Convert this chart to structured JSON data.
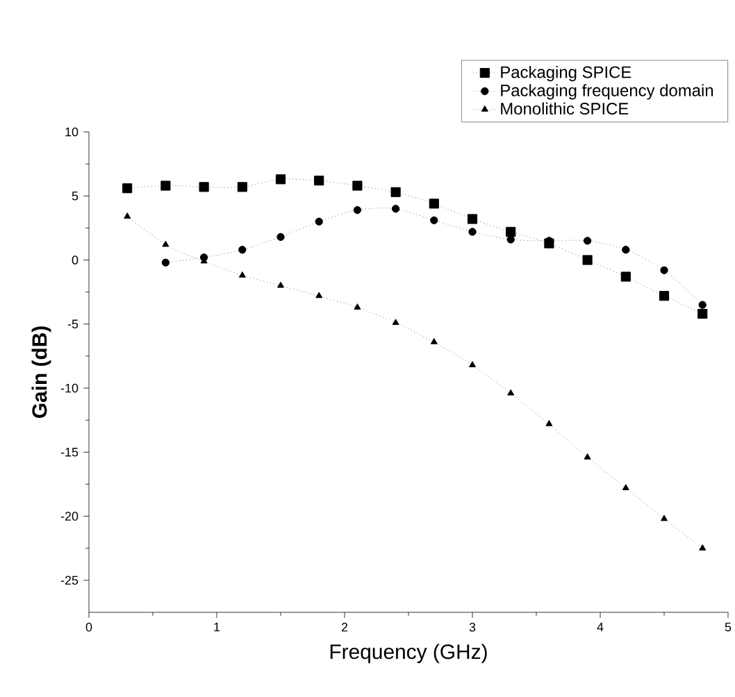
{
  "chart_data": {
    "type": "line",
    "xlabel": "Frequency  (GHz)",
    "ylabel": "Gain (dB)",
    "xlim": [
      0,
      5
    ],
    "xticks": [
      0,
      1,
      2,
      3,
      4,
      5
    ],
    "ylim": [
      -27.5,
      10
    ],
    "yticks": [
      -25,
      -20,
      -15,
      -10,
      -5,
      0,
      5,
      10
    ],
    "legend": "top right",
    "line_style": "dotted",
    "series": [
      {
        "name": "Packaging SPICE",
        "color": "#000000",
        "marker": "square",
        "x": [
          0.3,
          0.6,
          0.9,
          1.2,
          1.5,
          1.8,
          2.1,
          2.4,
          2.7,
          3.0,
          3.3,
          3.6,
          3.9,
          4.2,
          4.5,
          4.8
        ],
        "values": [
          5.6,
          5.8,
          5.7,
          5.7,
          6.3,
          6.2,
          5.8,
          5.3,
          4.4,
          3.2,
          2.2,
          1.3,
          0.0,
          -1.3,
          -2.8,
          -4.2
        ]
      },
      {
        "name": "Packaging frequency domain",
        "color": "#000000",
        "marker": "circle",
        "x": [
          0.6,
          0.9,
          1.2,
          1.5,
          1.8,
          2.1,
          2.4,
          2.7,
          3.0,
          3.3,
          3.6,
          3.9,
          4.2,
          4.5,
          4.8
        ],
        "values": [
          -0.2,
          0.2,
          0.8,
          1.8,
          3.0,
          3.9,
          4.0,
          3.1,
          2.2,
          1.6,
          1.5,
          1.5,
          0.8,
          -0.8,
          -3.5
        ]
      },
      {
        "name": "Monolithic SPICE",
        "color": "#000000",
        "marker": "triangle",
        "x": [
          0.3,
          0.6,
          0.9,
          1.2,
          1.5,
          1.8,
          2.1,
          2.4,
          2.7,
          3.0,
          3.3,
          3.6,
          3.9,
          4.2,
          4.5,
          4.8
        ],
        "values": [
          3.4,
          1.2,
          -0.1,
          -1.2,
          -2.0,
          -2.8,
          -3.7,
          -4.9,
          -6.4,
          -8.2,
          -10.4,
          -12.8,
          -15.4,
          -17.8,
          -20.2,
          -22.5
        ]
      }
    ]
  }
}
